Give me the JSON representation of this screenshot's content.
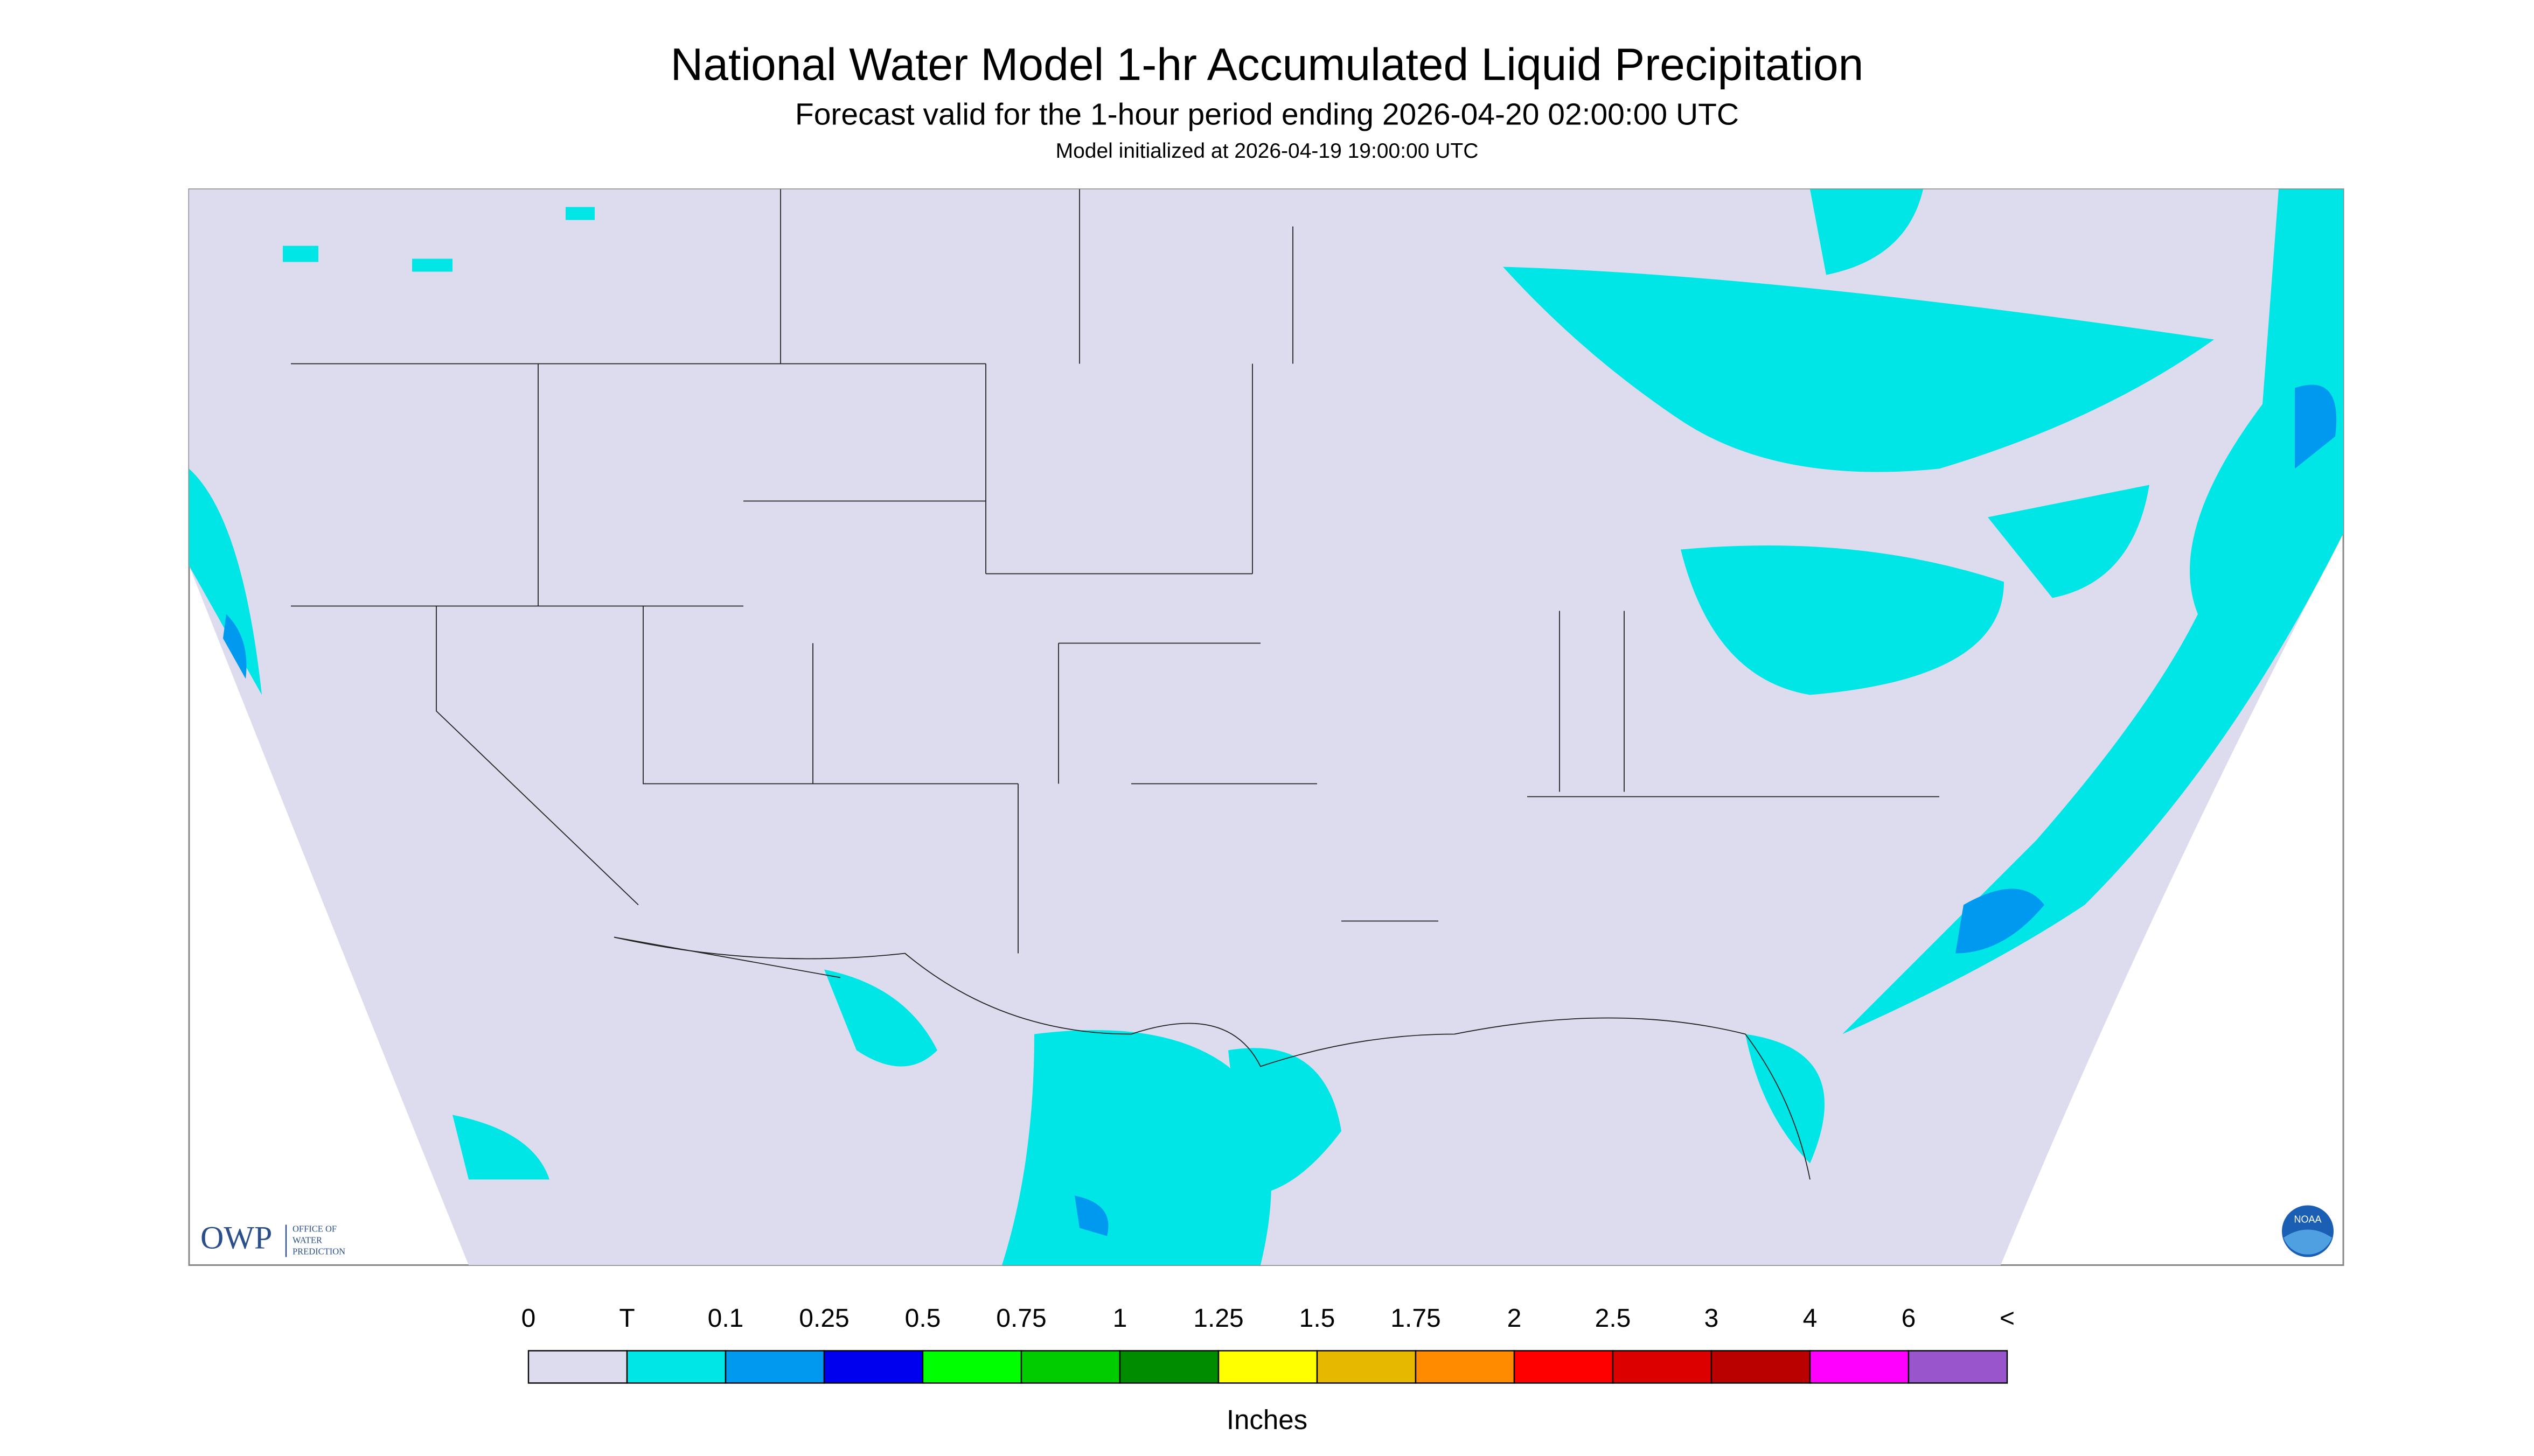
{
  "header": {
    "title": "National Water Model 1-hr Accumulated Liquid Precipitation",
    "subtitle": "Forecast valid for the 1-hour period ending 2026-04-20 02:00:00 UTC",
    "note": "Model initialized at 2026-04-19 19:00:00 UTC"
  },
  "logos": {
    "owp": "OWP",
    "owp_name": [
      "OFFICE OF",
      "WATER",
      "PREDICTION"
    ],
    "noaa": "NOAA"
  },
  "legend": {
    "labels": [
      "0",
      "T",
      "0.1",
      "0.25",
      "0.5",
      "0.75",
      "1",
      "1.25",
      "1.5",
      "1.75",
      "2",
      "2.5",
      "3",
      "4",
      "6",
      "<"
    ],
    "colors": [
      "#dcdcee",
      "#00e6e6",
      "#0099f0",
      "#0000ee",
      "#00ff00",
      "#00cc00",
      "#008c00",
      "#ffff00",
      "#e6b800",
      "#ff8c00",
      "#ff0000",
      "#dd0000",
      "#bb0000",
      "#ff00ff",
      "#9955cc"
    ],
    "unit": "Inches"
  }
}
